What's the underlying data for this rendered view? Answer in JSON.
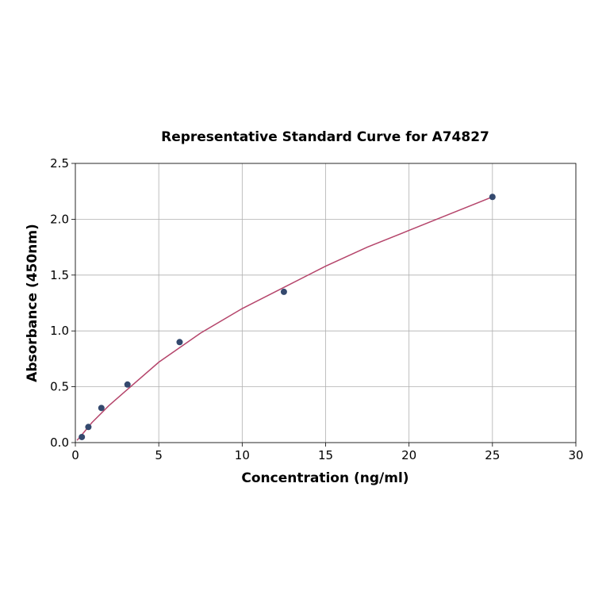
{
  "chart_data": {
    "type": "scatter",
    "title": "Representative Standard Curve for A74827",
    "x_label": "Concentration (ng/ml)",
    "y_label": "Absorbance (450nm)",
    "series": [
      {
        "kind": "points",
        "color": "#34496e",
        "x": [
          0.39,
          0.78,
          1.56,
          3.125,
          6.25,
          12.5,
          25
        ],
        "values": [
          0.05,
          0.14,
          0.31,
          0.52,
          0.9,
          1.35,
          2.2
        ]
      },
      {
        "kind": "line",
        "color": "#b5456b",
        "x": [
          0.1,
          0.5,
          1,
          2,
          3,
          5,
          7.5,
          10,
          12.5,
          15,
          17.5,
          20,
          22.5,
          25
        ],
        "values": [
          0.02,
          0.09,
          0.18,
          0.33,
          0.46,
          0.72,
          0.98,
          1.2,
          1.39,
          1.58,
          1.75,
          1.9,
          2.05,
          2.2
        ]
      }
    ],
    "xlim": [
      0,
      30
    ],
    "xticks": [
      0,
      5,
      10,
      15,
      20,
      25,
      30
    ],
    "ylim": [
      0,
      2.5
    ],
    "yticks": [
      {
        "value": 0,
        "label": "0.0"
      },
      0.5,
      {
        "value": 1,
        "label": "1.0"
      },
      1.5,
      {
        "value": 2,
        "label": "2.0"
      },
      2.5
    ],
    "grid": true
  }
}
